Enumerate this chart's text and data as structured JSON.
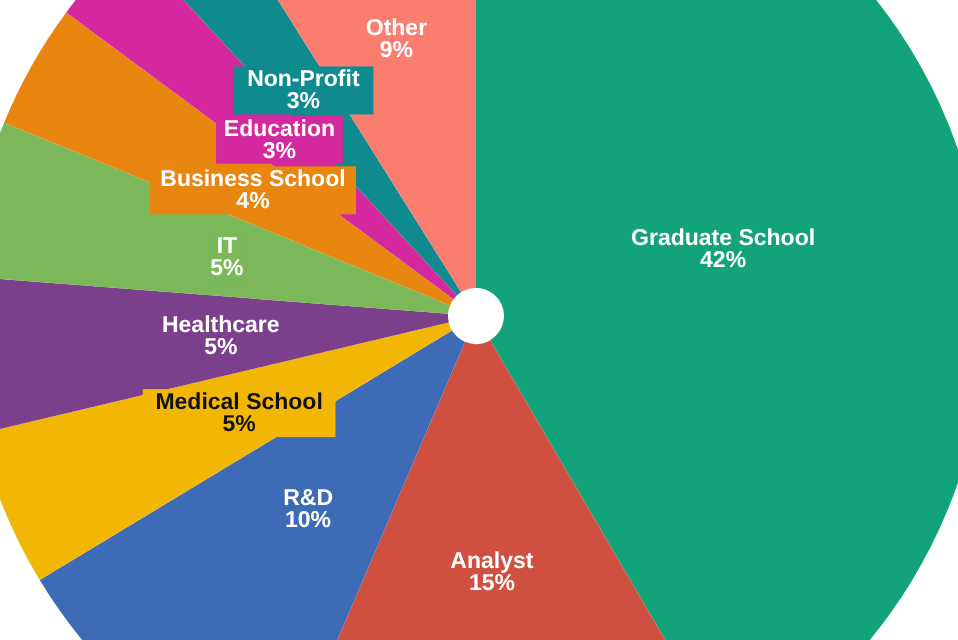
{
  "chart_data": {
    "type": "pie",
    "categories": [
      "Graduate School",
      "Analyst",
      "R&D",
      "Medical School",
      "Healthcare",
      "IT",
      "Business School",
      "Education",
      "Non-Profit",
      "Other"
    ],
    "values": [
      42,
      15,
      10,
      5,
      5,
      5,
      4,
      3,
      3,
      9
    ],
    "value_labels": [
      "42%",
      "15%",
      "10%",
      "5%",
      "5%",
      "5%",
      "4%",
      "3%",
      "3%",
      "9%"
    ],
    "colors": [
      "#13a37a",
      "#cf5040",
      "#3d6bb5",
      "#f2b705",
      "#7b3f8c",
      "#7ab85a",
      "#e8860f",
      "#d4289e",
      "#0f8a8f",
      "#fa7d70"
    ],
    "legend": false
  }
}
